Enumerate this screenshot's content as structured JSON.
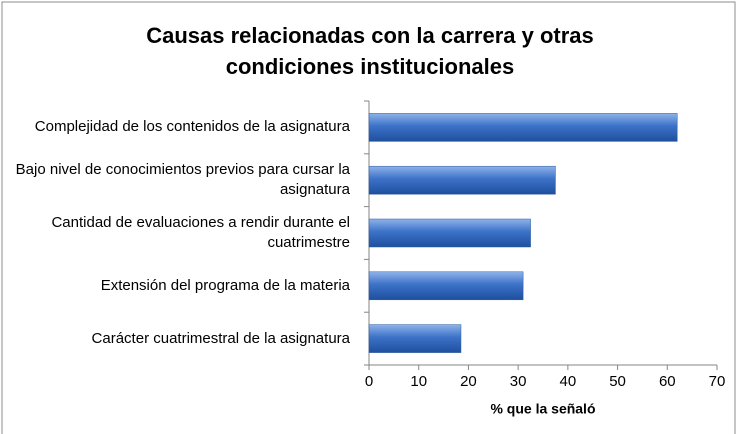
{
  "chart_data": {
    "type": "hbar",
    "title": "Causas relacionadas con la carrera y otras condiciones institucionales",
    "categories": [
      "Complejidad de los contenidos de la asignatura",
      "Bajo nivel de conocimientos previos para cursar la asignatura",
      "Cantidad de evaluaciones a rendir durante el cuatrimestre",
      "Extensión del programa de la materia",
      "Carácter cuatrimestral de la asignatura"
    ],
    "values": [
      62,
      37.5,
      32.5,
      31,
      18.5
    ],
    "color": "#3a6fc4",
    "x_label": "% que la señaló",
    "xlim": [
      0,
      70
    ],
    "xticks": [
      0,
      10,
      20,
      30,
      40,
      50,
      60,
      70
    ],
    "grid": false
  }
}
